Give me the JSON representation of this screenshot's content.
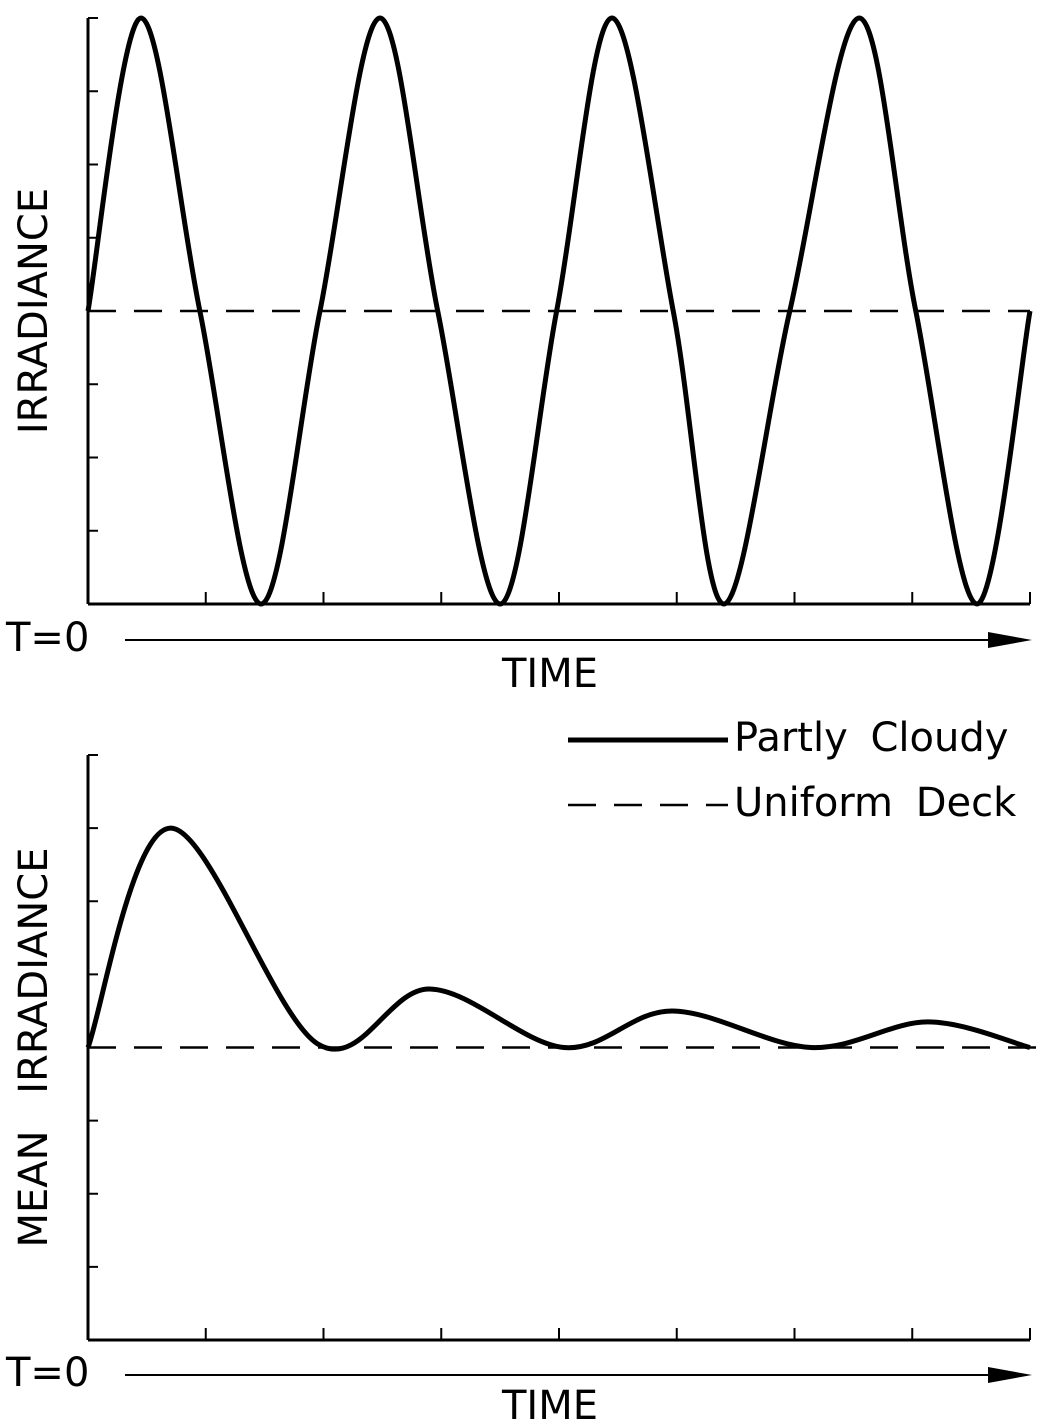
{
  "chart_data": [
    {
      "type": "line",
      "ylabel": "IRRADIANCE",
      "xlabel": "TIME",
      "x_origin_label": "T=0",
      "xlim": [
        0,
        8
      ],
      "ylim": [
        0,
        8
      ],
      "xticks": [
        0,
        1,
        2,
        3,
        4,
        5,
        6,
        7,
        8
      ],
      "yticks": [
        0,
        1,
        2,
        3,
        4,
        5,
        6,
        7,
        8
      ],
      "series": [
        {
          "color": "#000000",
          "style": "solid",
          "x": [
            0,
            0.45,
            0.95,
            1.47,
            1.97,
            2.48,
            2.97,
            3.5,
            3.98,
            4.45,
            4.97,
            5.4,
            5.96,
            6.55,
            7.03,
            7.55,
            8
          ],
          "values": [
            4,
            8,
            4,
            0,
            4,
            8,
            4,
            0,
            4,
            8,
            4,
            0,
            4,
            8,
            4,
            0,
            4
          ]
        },
        {
          "color": "#000000",
          "style": "dashed",
          "x": [
            0,
            8
          ],
          "values": [
            4,
            4
          ]
        }
      ]
    },
    {
      "type": "line",
      "ylabel": "MEAN IRRADIANCE",
      "xlabel": "TIME",
      "x_origin_label": "T=0",
      "xlim": [
        0,
        8
      ],
      "ylim": [
        0,
        8
      ],
      "xticks": [
        0,
        1,
        2,
        3,
        4,
        5,
        6,
        7,
        8
      ],
      "yticks": [
        0,
        1,
        2,
        3,
        4,
        5,
        6,
        7,
        8
      ],
      "legend": "upper right",
      "series": [
        {
          "name": "Partly Cloudy",
          "color": "#000000",
          "style": "solid",
          "x": [
            0,
            0.7,
            1.95,
            2.9,
            4.04,
            4.96,
            6.14,
            7.13,
            8
          ],
          "values": [
            4,
            7,
            4.05,
            4.8,
            4,
            4.5,
            4,
            4.35,
            4
          ]
        },
        {
          "name": "Uniform Deck",
          "color": "#000000",
          "style": "dashed",
          "x": [
            0,
            8.1
          ],
          "values": [
            4,
            4
          ]
        }
      ]
    }
  ]
}
